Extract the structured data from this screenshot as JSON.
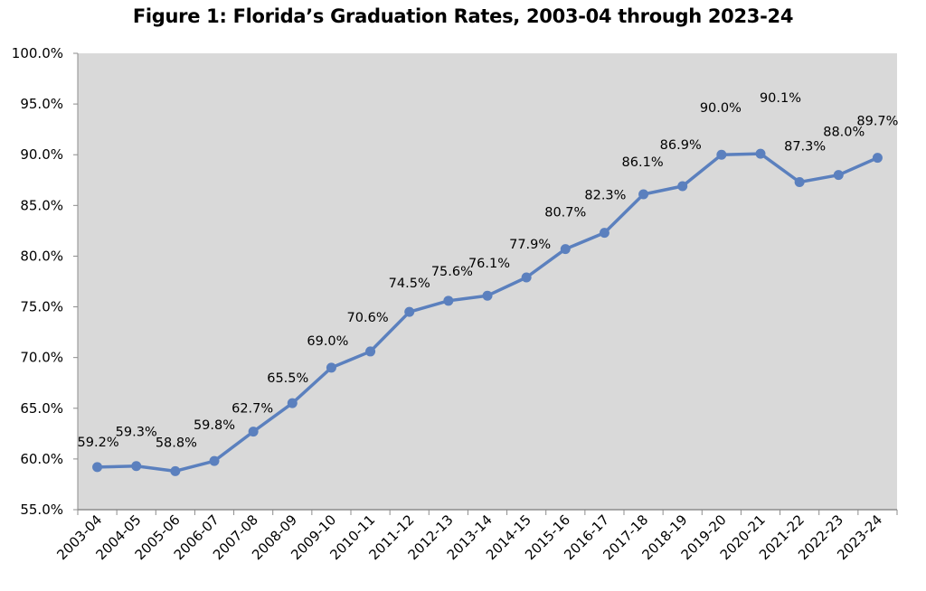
{
  "chart_data": {
    "type": "line",
    "title": "Figure 1: Florida’s Graduation Rates, 2003-04 through 2023-24",
    "xlabel": "",
    "ylabel": "",
    "categories": [
      "2003-04",
      "2004-05",
      "2005-06",
      "2006-07",
      "2007-08",
      "2008-09",
      "2009-10",
      "2010-11",
      "2011-12",
      "2012-13",
      "2013-14",
      "2014-15",
      "2015-16",
      "2016-17",
      "2017-18",
      "2018-19",
      "2019-20",
      "2020-21",
      "2021-22",
      "2022-23",
      "2023-24"
    ],
    "values": [
      59.2,
      59.3,
      58.8,
      59.8,
      62.7,
      65.5,
      69.0,
      70.6,
      74.5,
      75.6,
      76.1,
      77.9,
      80.7,
      82.3,
      86.1,
      86.9,
      90.0,
      90.1,
      87.3,
      88.0,
      89.7
    ],
    "data_labels": [
      "59.2%",
      "59.3%",
      "58.8%",
      "59.8%",
      "62.7%",
      "65.5%",
      "69.0%",
      "70.6%",
      "74.5%",
      "75.6%",
      "76.1%",
      "77.9%",
      "80.7%",
      "82.3%",
      "86.1%",
      "86.9%",
      "90.0%",
      "90.1%",
      "87.3%",
      "88.0%",
      "89.7%"
    ],
    "ylim": [
      55,
      100
    ],
    "y_ticks": [
      "55.0%",
      "60.0%",
      "65.0%",
      "70.0%",
      "75.0%",
      "80.0%",
      "85.0%",
      "90.0%",
      "95.0%",
      "100.0%"
    ],
    "grid": false,
    "legend": "none",
    "colors": {
      "line": "#5b80be",
      "plot_background": "#d9d9d9",
      "axis": "#8c8c8c"
    }
  }
}
